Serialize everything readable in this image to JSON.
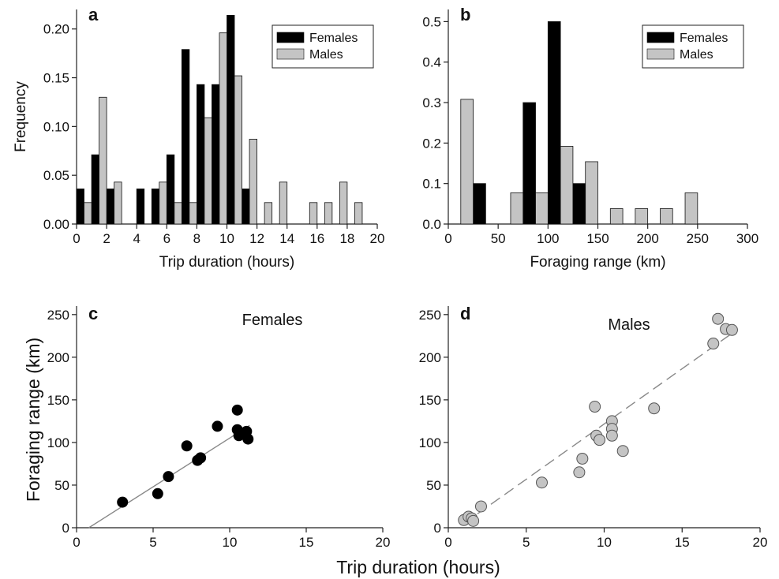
{
  "colors": {
    "females": "#000000",
    "males": "#c4c4c4",
    "axis": "#222222",
    "fit_line": "#888888"
  },
  "shared": {
    "xlabel": "Trip duration (hours)",
    "ylabel": "Foraging range (km)"
  },
  "chart_data": [
    {
      "panel": "a",
      "type": "bar",
      "title": "",
      "xlabel": "Trip duration (hours)",
      "ylabel": "Frequency",
      "xlim": [
        0,
        20
      ],
      "ylim": [
        0,
        0.22
      ],
      "xticks": [
        "0",
        "2",
        "4",
        "6",
        "8",
        "10",
        "12",
        "14",
        "16",
        "18",
        "20"
      ],
      "yticks": [
        "0.00",
        "0.05",
        "0.10",
        "0.15",
        "0.20"
      ],
      "bin_width": 1,
      "bins": [
        0,
        1,
        2,
        3,
        4,
        5,
        6,
        7,
        8,
        9,
        10,
        11,
        12,
        13,
        14,
        15,
        16,
        17,
        18,
        19
      ],
      "legend": {
        "placement": "top-right",
        "entries": [
          "Females",
          "Males"
        ]
      },
      "series": [
        {
          "name": "Females",
          "values": [
            0.036,
            0.071,
            0.036,
            0,
            0.036,
            0.036,
            0.071,
            0.179,
            0.143,
            0.143,
            0.214,
            0.036,
            0,
            0,
            0,
            0,
            0,
            0,
            0,
            0
          ]
        },
        {
          "name": "Males",
          "values": [
            0.022,
            0.13,
            0.043,
            0,
            0,
            0.043,
            0.022,
            0.022,
            0.109,
            0.196,
            0.152,
            0.087,
            0.022,
            0.043,
            0,
            0.022,
            0.022,
            0.043,
            0.022,
            0
          ]
        }
      ]
    },
    {
      "panel": "b",
      "type": "bar",
      "title": "",
      "xlabel": "Foraging range (km)",
      "ylabel": "",
      "xlim": [
        0,
        300
      ],
      "ylim": [
        0,
        0.53
      ],
      "xticks": [
        "0",
        "50",
        "100",
        "150",
        "200",
        "250",
        "300"
      ],
      "yticks": [
        "0.0",
        "0.1",
        "0.2",
        "0.3",
        "0.4",
        "0.5"
      ],
      "bin_width": 25,
      "bins": [
        0,
        25,
        50,
        75,
        100,
        125,
        150,
        175,
        200,
        225,
        250,
        275
      ],
      "legend": {
        "placement": "top-right",
        "entries": [
          "Females",
          "Males"
        ]
      },
      "series": [
        {
          "name": "Females",
          "values": [
            0,
            0.1,
            0,
            0.3,
            0.5,
            0.1,
            0,
            0,
            0,
            0,
            0,
            0
          ]
        },
        {
          "name": "Males",
          "values": [
            0.308,
            0,
            0.077,
            0.077,
            0.192,
            0.154,
            0.038,
            0.038,
            0.038,
            0.077,
            0,
            0
          ]
        }
      ]
    },
    {
      "panel": "c",
      "type": "scatter",
      "title": "Females",
      "xlabel": "",
      "ylabel": "",
      "xlim": [
        0,
        20
      ],
      "ylim": [
        0,
        260
      ],
      "xticks": [
        "0",
        "5",
        "10",
        "15",
        "20"
      ],
      "yticks": [
        "0",
        "50",
        "100",
        "150",
        "200",
        "250"
      ],
      "series": [
        {
          "name": "Females",
          "points": [
            [
              3.0,
              30
            ],
            [
              5.3,
              40
            ],
            [
              6.0,
              60
            ],
            [
              7.2,
              96
            ],
            [
              7.9,
              79
            ],
            [
              8.1,
              82
            ],
            [
              9.2,
              119
            ],
            [
              10.5,
              138
            ],
            [
              10.5,
              115
            ],
            [
              10.6,
              108
            ],
            [
              10.8,
              111
            ],
            [
              11.1,
              113
            ],
            [
              11.2,
              104
            ]
          ]
        }
      ],
      "fit": {
        "x": [
          0.8,
          11.3
        ],
        "y": [
          0,
          120
        ],
        "style": "solid"
      }
    },
    {
      "panel": "d",
      "type": "scatter",
      "title": "Males",
      "xlabel": "",
      "ylabel": "",
      "xlim": [
        0,
        20
      ],
      "ylim": [
        0,
        260
      ],
      "xticks": [
        "0",
        "5",
        "10",
        "15",
        "20"
      ],
      "yticks": [
        "0",
        "50",
        "100",
        "150",
        "200",
        "250"
      ],
      "series": [
        {
          "name": "Males",
          "points": [
            [
              1.0,
              9
            ],
            [
              1.3,
              13
            ],
            [
              1.5,
              11
            ],
            [
              1.6,
              8
            ],
            [
              2.1,
              25
            ],
            [
              6.0,
              53
            ],
            [
              8.4,
              65
            ],
            [
              8.6,
              81
            ],
            [
              9.4,
              142
            ],
            [
              9.5,
              108
            ],
            [
              9.7,
              103
            ],
            [
              10.5,
              125
            ],
            [
              10.5,
              116
            ],
            [
              10.5,
              108
            ],
            [
              11.2,
              90
            ],
            [
              13.2,
              140
            ],
            [
              17.0,
              216
            ],
            [
              17.3,
              245
            ],
            [
              17.8,
              233
            ],
            [
              18.2,
              232
            ]
          ]
        }
      ],
      "fit": {
        "x": [
          1.0,
          18.2
        ],
        "y": [
          5,
          228
        ],
        "style": "dashed"
      }
    }
  ]
}
